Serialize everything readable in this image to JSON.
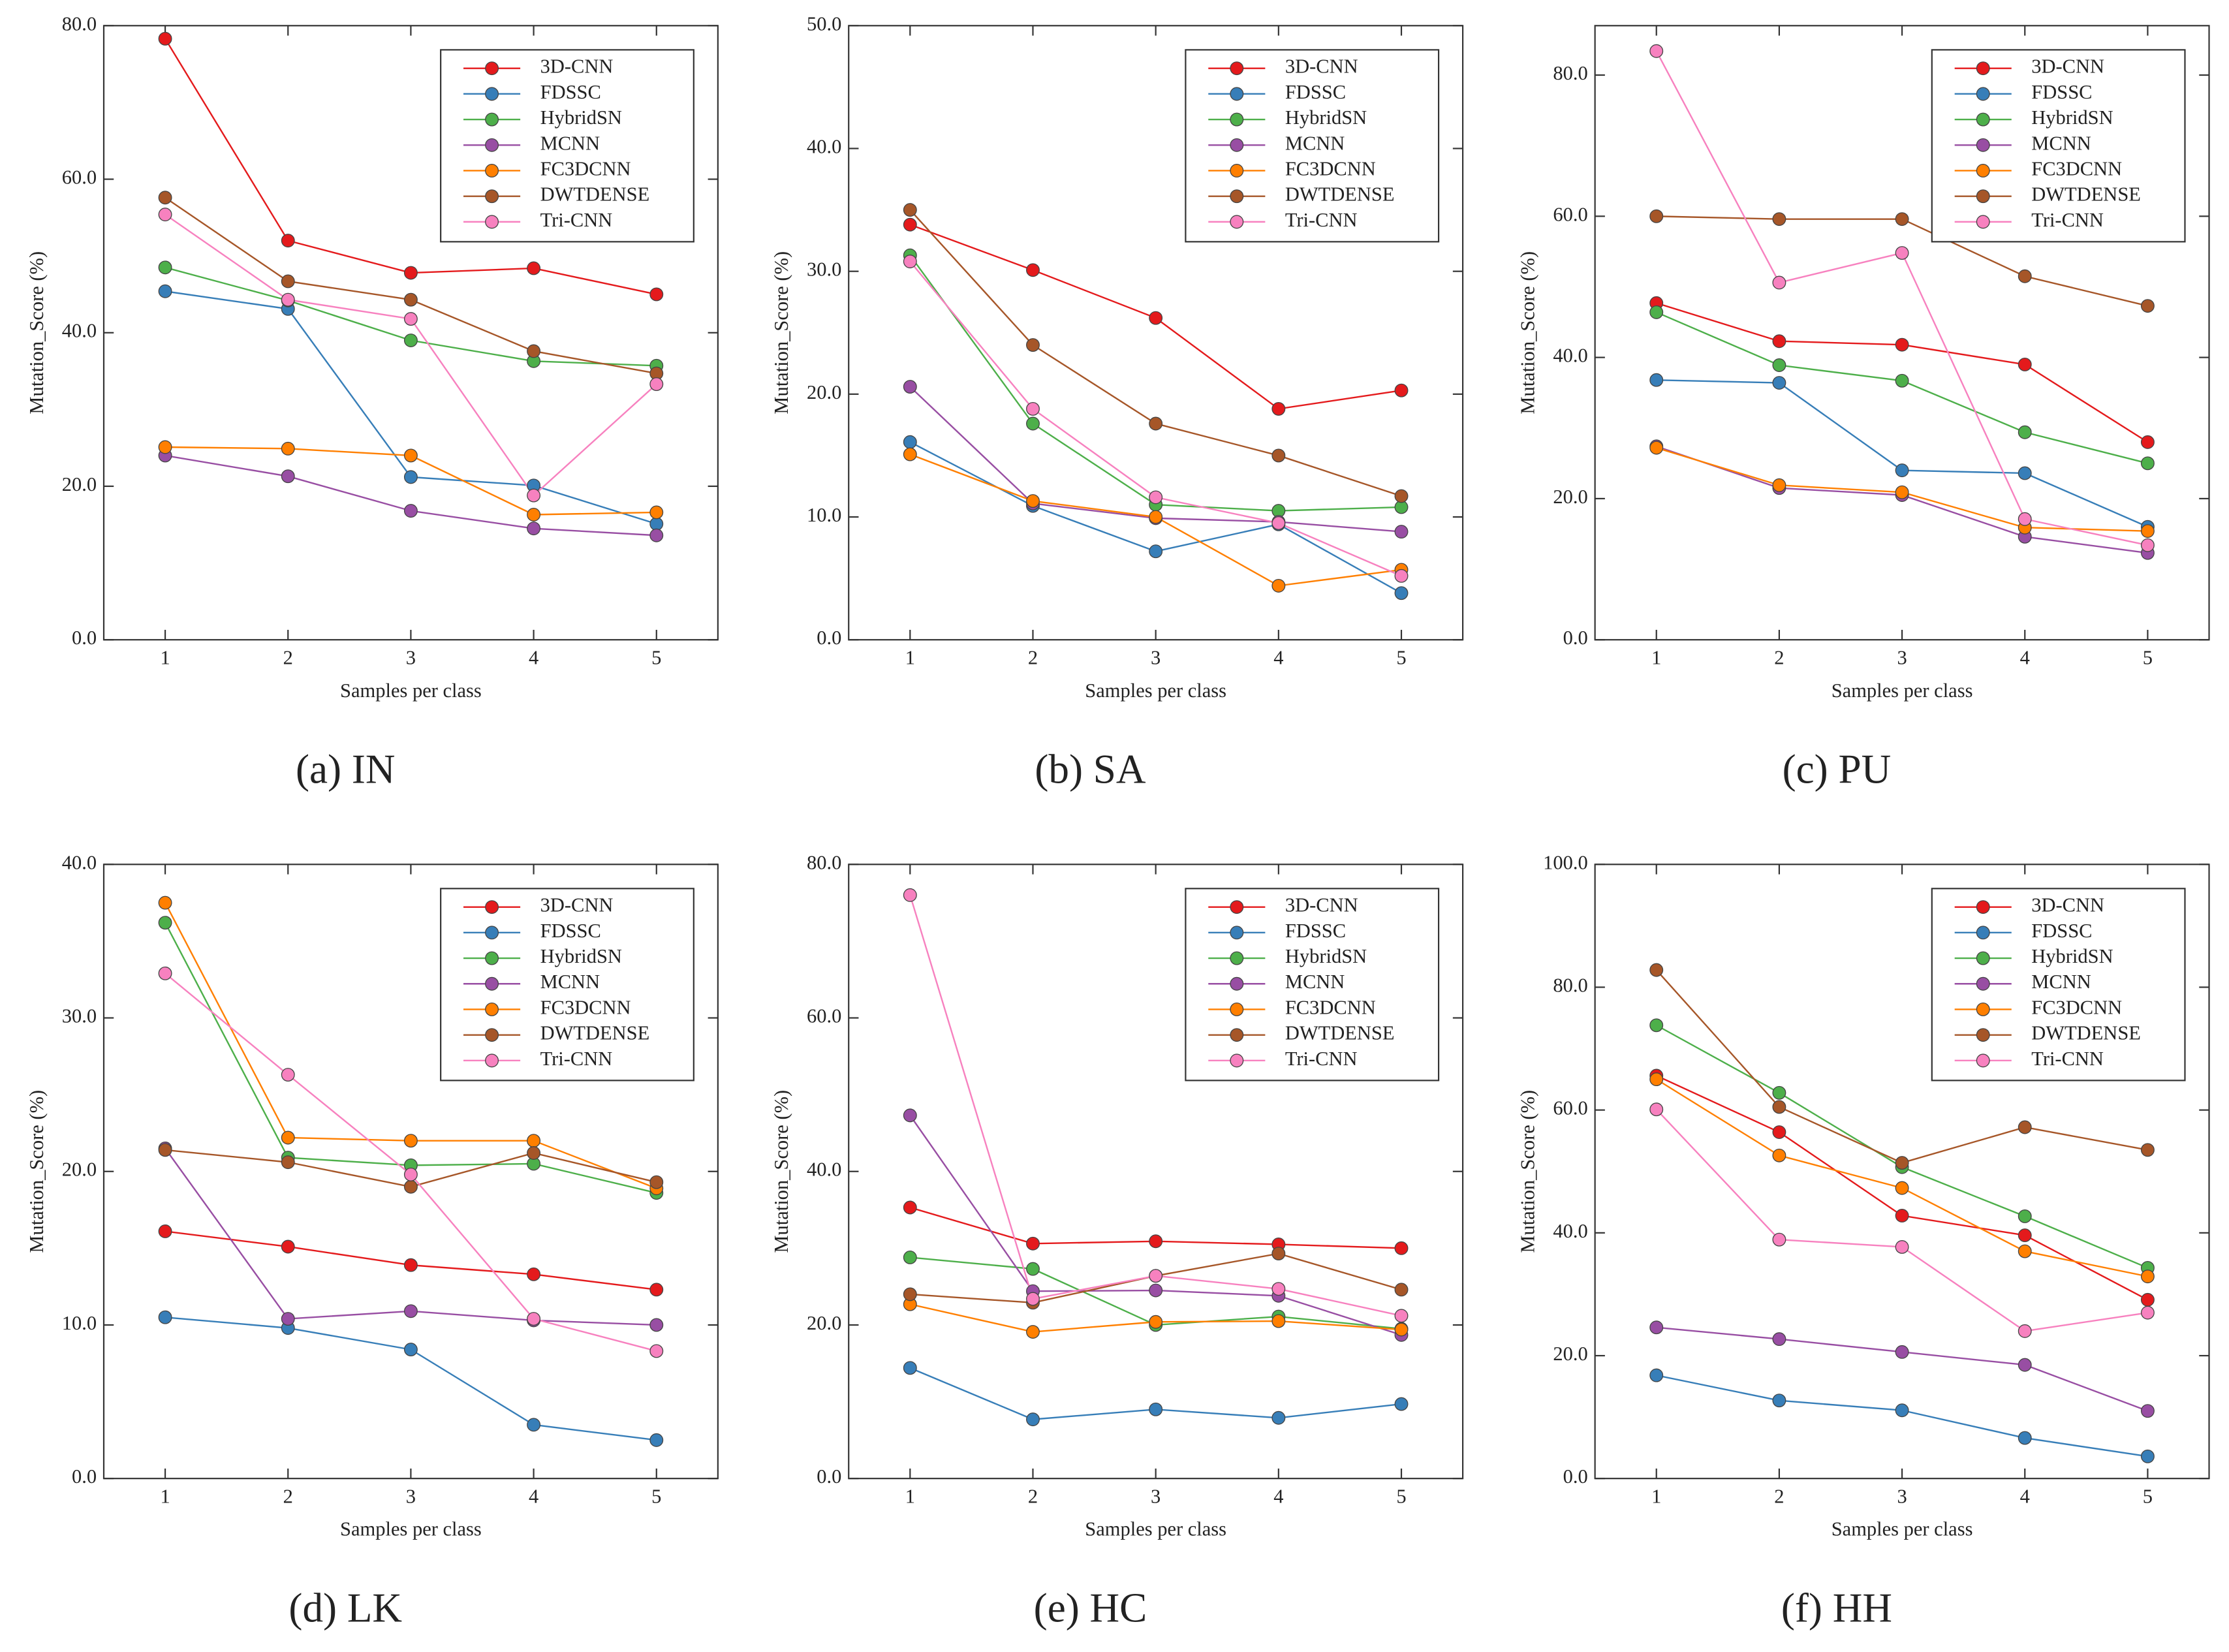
{
  "chart_data": [
    {
      "type": "line",
      "title": "(a) IN",
      "xlabel": "Samples per class",
      "ylabel": "Mutation_Score (%)",
      "x": [
        1,
        2,
        3,
        4,
        5
      ],
      "xlim": [
        0.5,
        5.5
      ],
      "xticks": [
        1,
        2,
        3,
        4,
        5
      ],
      "ylim": [
        0,
        80
      ],
      "yticks": [
        {
          "value": 0,
          "label": "0.0"
        },
        {
          "value": 20,
          "label": "20.0"
        },
        {
          "value": 40,
          "label": "40.0"
        },
        {
          "value": 60,
          "label": "60.0"
        },
        {
          "value": 80,
          "label": "80.0"
        }
      ],
      "legend": "upper right",
      "series": [
        {
          "name": "3D-CNN",
          "color": "#e41a1c",
          "values": [
            78.3,
            52.0,
            47.8,
            48.4,
            45.0
          ]
        },
        {
          "name": "FDSSC",
          "color": "#377eb8",
          "values": [
            45.4,
            43.1,
            21.2,
            20.1,
            15.1
          ]
        },
        {
          "name": "HybridSN",
          "color": "#4daf4a",
          "values": [
            48.5,
            44.2,
            39.0,
            36.3,
            35.7
          ]
        },
        {
          "name": "MCNN",
          "color": "#984ea3",
          "values": [
            24.0,
            21.3,
            16.8,
            14.5,
            13.6
          ]
        },
        {
          "name": "FC3DCNN",
          "color": "#ff7f00",
          "values": [
            25.1,
            24.9,
            24.0,
            16.3,
            16.6
          ]
        },
        {
          "name": "DWTDENSE",
          "color": "#a65628",
          "values": [
            57.6,
            46.7,
            44.3,
            37.6,
            34.7
          ]
        },
        {
          "name": "Tri-CNN",
          "color": "#f781bf",
          "values": [
            55.4,
            44.3,
            41.8,
            18.8,
            33.3
          ]
        }
      ]
    },
    {
      "type": "line",
      "title": "(b) SA",
      "xlabel": "Samples per class",
      "ylabel": "Mutation_Score (%)",
      "x": [
        1,
        2,
        3,
        4,
        5
      ],
      "xlim": [
        0.5,
        5.5
      ],
      "xticks": [
        1,
        2,
        3,
        4,
        5
      ],
      "ylim": [
        0,
        50
      ],
      "yticks": [
        {
          "value": 0,
          "label": "0.0"
        },
        {
          "value": 10,
          "label": "10.0"
        },
        {
          "value": 20,
          "label": "20.0"
        },
        {
          "value": 30,
          "label": "30.0"
        },
        {
          "value": 40,
          "label": "40.0"
        },
        {
          "value": 50,
          "label": "50.0"
        }
      ],
      "legend": "upper right",
      "series": [
        {
          "name": "3D-CNN",
          "color": "#e41a1c",
          "values": [
            33.8,
            30.1,
            26.2,
            18.8,
            20.3
          ]
        },
        {
          "name": "FDSSC",
          "color": "#377eb8",
          "values": [
            16.1,
            10.9,
            7.2,
            9.4,
            3.8
          ]
        },
        {
          "name": "HybridSN",
          "color": "#4daf4a",
          "values": [
            31.3,
            17.6,
            11.0,
            10.5,
            10.8
          ]
        },
        {
          "name": "MCNN",
          "color": "#984ea3",
          "values": [
            20.6,
            11.1,
            9.9,
            9.6,
            8.8
          ]
        },
        {
          "name": "FC3DCNN",
          "color": "#ff7f00",
          "values": [
            15.1,
            11.3,
            10.0,
            4.4,
            5.7
          ]
        },
        {
          "name": "DWTDENSE",
          "color": "#a65628",
          "values": [
            35.0,
            24.0,
            17.6,
            15.0,
            11.7
          ]
        },
        {
          "name": "Tri-CNN",
          "color": "#f781bf",
          "values": [
            30.8,
            18.8,
            11.6,
            9.5,
            5.2
          ]
        }
      ]
    },
    {
      "type": "line",
      "title": "(c) PU",
      "xlabel": "Samples per class",
      "ylabel": "Mutation_Score (%)",
      "x": [
        1,
        2,
        3,
        4,
        5
      ],
      "xlim": [
        0.5,
        5.5
      ],
      "xticks": [
        1,
        2,
        3,
        4,
        5
      ],
      "ylim": [
        0,
        87
      ],
      "yticks": [
        {
          "value": 0,
          "label": "0.0"
        },
        {
          "value": 20,
          "label": "20.0"
        },
        {
          "value": 40,
          "label": "40.0"
        },
        {
          "value": 60,
          "label": "60.0"
        },
        {
          "value": 80,
          "label": "80.0"
        }
      ],
      "legend": "upper right",
      "series": [
        {
          "name": "3D-CNN",
          "color": "#e41a1c",
          "values": [
            47.7,
            42.3,
            41.8,
            39.0,
            28.0
          ]
        },
        {
          "name": "FDSSC",
          "color": "#377eb8",
          "values": [
            36.8,
            36.4,
            24.0,
            23.6,
            16.0
          ]
        },
        {
          "name": "HybridSN",
          "color": "#4daf4a",
          "values": [
            46.4,
            38.9,
            36.7,
            29.4,
            25.0
          ]
        },
        {
          "name": "MCNN",
          "color": "#984ea3",
          "values": [
            27.4,
            21.5,
            20.5,
            14.6,
            12.3
          ]
        },
        {
          "name": "FC3DCNN",
          "color": "#ff7f00",
          "values": [
            27.2,
            21.9,
            20.9,
            15.9,
            15.4
          ]
        },
        {
          "name": "DWTDENSE",
          "color": "#a65628",
          "values": [
            60.0,
            59.6,
            59.6,
            51.5,
            47.3
          ]
        },
        {
          "name": "Tri-CNN",
          "color": "#f781bf",
          "values": [
            83.4,
            50.6,
            54.8,
            17.1,
            13.4
          ]
        }
      ]
    },
    {
      "type": "line",
      "title": "(d) LK",
      "xlabel": "Samples per class",
      "ylabel": "Mutation_Score (%)",
      "x": [
        1,
        2,
        3,
        4,
        5
      ],
      "xlim": [
        0.5,
        5.5
      ],
      "xticks": [
        1,
        2,
        3,
        4,
        5
      ],
      "ylim": [
        0,
        40
      ],
      "yticks": [
        {
          "value": 0,
          "label": "0.0"
        },
        {
          "value": 10,
          "label": "10.0"
        },
        {
          "value": 20,
          "label": "20.0"
        },
        {
          "value": 30,
          "label": "30.0"
        },
        {
          "value": 40,
          "label": "40.0"
        }
      ],
      "legend": "upper right",
      "series": [
        {
          "name": "3D-CNN",
          "color": "#e41a1c",
          "values": [
            16.1,
            15.1,
            13.9,
            13.3,
            12.3
          ]
        },
        {
          "name": "FDSSC",
          "color": "#377eb8",
          "values": [
            10.5,
            9.8,
            8.4,
            3.5,
            2.5
          ]
        },
        {
          "name": "HybridSN",
          "color": "#4daf4a",
          "values": [
            36.2,
            20.9,
            20.4,
            20.5,
            18.6
          ]
        },
        {
          "name": "MCNN",
          "color": "#984ea3",
          "values": [
            21.5,
            10.4,
            10.9,
            10.3,
            10.0
          ]
        },
        {
          "name": "FC3DCNN",
          "color": "#ff7f00",
          "values": [
            37.5,
            22.2,
            22.0,
            22.0,
            18.9
          ]
        },
        {
          "name": "DWTDENSE",
          "color": "#a65628",
          "values": [
            21.4,
            20.6,
            19.0,
            21.2,
            19.3
          ]
        },
        {
          "name": "Tri-CNN",
          "color": "#f781bf",
          "values": [
            32.9,
            26.3,
            19.8,
            10.4,
            8.3
          ]
        }
      ]
    },
    {
      "type": "line",
      "title": "(e) HC",
      "xlabel": "Samples per class",
      "ylabel": "Mutation_Score (%)",
      "x": [
        1,
        2,
        3,
        4,
        5
      ],
      "xlim": [
        0.5,
        5.5
      ],
      "xticks": [
        1,
        2,
        3,
        4,
        5
      ],
      "ylim": [
        0,
        80
      ],
      "yticks": [
        {
          "value": 0,
          "label": "0.0"
        },
        {
          "value": 20,
          "label": "20.0"
        },
        {
          "value": 40,
          "label": "40.0"
        },
        {
          "value": 60,
          "label": "60.0"
        },
        {
          "value": 80,
          "label": "80.0"
        }
      ],
      "legend": "upper right",
      "series": [
        {
          "name": "3D-CNN",
          "color": "#e41a1c",
          "values": [
            35.3,
            30.6,
            30.9,
            30.5,
            30.0
          ]
        },
        {
          "name": "FDSSC",
          "color": "#377eb8",
          "values": [
            14.4,
            7.7,
            9.0,
            7.9,
            9.7
          ]
        },
        {
          "name": "HybridSN",
          "color": "#4daf4a",
          "values": [
            28.8,
            27.3,
            20.0,
            21.1,
            19.5
          ]
        },
        {
          "name": "MCNN",
          "color": "#984ea3",
          "values": [
            47.3,
            24.4,
            24.5,
            23.8,
            18.7
          ]
        },
        {
          "name": "FC3DCNN",
          "color": "#ff7f00",
          "values": [
            22.7,
            19.1,
            20.4,
            20.5,
            19.4
          ]
        },
        {
          "name": "DWTDENSE",
          "color": "#a65628",
          "values": [
            24.0,
            22.9,
            26.4,
            29.3,
            24.6
          ]
        },
        {
          "name": "Tri-CNN",
          "color": "#f781bf",
          "values": [
            76.0,
            23.4,
            26.4,
            24.7,
            21.2
          ]
        }
      ]
    },
    {
      "type": "line",
      "title": "(f) HH",
      "xlabel": "Samples per class",
      "ylabel": "Mutation_Score (%)",
      "x": [
        1,
        2,
        3,
        4,
        5
      ],
      "xlim": [
        0.5,
        5.5
      ],
      "xticks": [
        1,
        2,
        3,
        4,
        5
      ],
      "ylim": [
        0,
        100
      ],
      "yticks": [
        {
          "value": 0,
          "label": "0.0"
        },
        {
          "value": 20,
          "label": "20.0"
        },
        {
          "value": 40,
          "label": "40.0"
        },
        {
          "value": 60,
          "label": "60.0"
        },
        {
          "value": 80,
          "label": "80.0"
        },
        {
          "value": 100,
          "label": "100.0"
        }
      ],
      "legend": "upper right",
      "series": [
        {
          "name": "3D-CNN",
          "color": "#e41a1c",
          "values": [
            65.6,
            56.4,
            42.8,
            39.6,
            29.1
          ]
        },
        {
          "name": "FDSSC",
          "color": "#377eb8",
          "values": [
            16.8,
            12.7,
            11.1,
            6.6,
            3.6
          ]
        },
        {
          "name": "HybridSN",
          "color": "#4daf4a",
          "values": [
            73.8,
            62.8,
            50.7,
            42.7,
            34.3
          ]
        },
        {
          "name": "MCNN",
          "color": "#984ea3",
          "values": [
            24.6,
            22.7,
            20.6,
            18.5,
            11.0
          ]
        },
        {
          "name": "FC3DCNN",
          "color": "#ff7f00",
          "values": [
            65.0,
            52.6,
            47.3,
            37.0,
            32.9
          ]
        },
        {
          "name": "DWTDENSE",
          "color": "#a65628",
          "values": [
            82.8,
            60.5,
            51.4,
            57.2,
            53.5
          ]
        },
        {
          "name": "Tri-CNN",
          "color": "#f781bf",
          "values": [
            60.1,
            38.9,
            37.7,
            24.0,
            27.0
          ]
        }
      ]
    }
  ]
}
